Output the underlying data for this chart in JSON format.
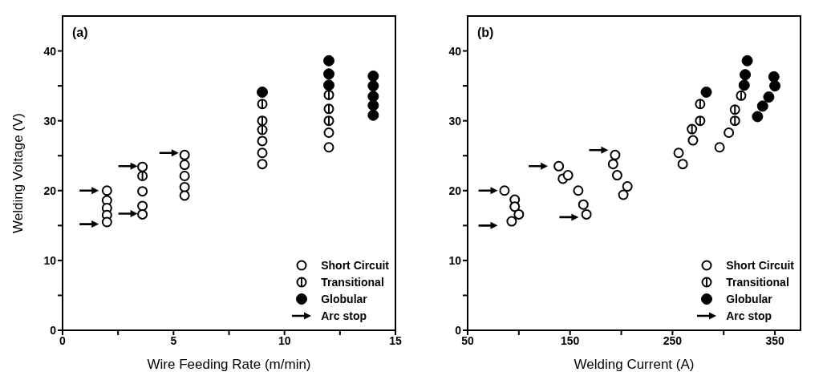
{
  "chart_data": [
    {
      "type": "scatter",
      "title": "(a)",
      "xlabel": "Wire Feeding Rate (m/min)",
      "ylabel": "Welding Voltage (V)",
      "xlim": [
        0,
        15
      ],
      "ylim": [
        0,
        45
      ],
      "xticks": [
        0,
        {
          "value": 2.5,
          "label": null
        },
        5,
        {
          "value": 7.5,
          "label": null
        },
        10,
        {
          "value": 12.5,
          "label": null
        },
        15
      ],
      "yticks": [
        0,
        {
          "value": 5,
          "label": null
        },
        10,
        {
          "value": 15,
          "label": null
        },
        20,
        {
          "value": 25,
          "label": null
        },
        30,
        {
          "value": 35,
          "label": null
        },
        40
      ],
      "legend": "bottom right",
      "grid": false,
      "series": [
        {
          "name": "Short Circuit",
          "color": "#000000",
          "x": [
            2,
            2,
            2,
            2,
            2,
            3.6,
            3.6,
            3.6,
            3.6,
            5.5,
            5.5,
            5.5,
            5.5,
            5.5,
            9,
            9,
            9,
            12,
            12
          ],
          "values": [
            20,
            18.6,
            17.5,
            16.5,
            15.5,
            23.4,
            19.9,
            17.8,
            16.6,
            25.1,
            23.7,
            22.1,
            20.5,
            19.3,
            27.1,
            25.4,
            23.8,
            28.3,
            26.2
          ]
        },
        {
          "name": "Transitional",
          "color": "#000000",
          "x": [
            3.6,
            9,
            9,
            9,
            12,
            12,
            12
          ],
          "values": [
            22.1,
            32.4,
            30,
            28.7,
            33.7,
            31.7,
            30
          ]
        },
        {
          "name": "Globular",
          "color": "#000000",
          "x": [
            9,
            12,
            12,
            12,
            14,
            14,
            14,
            14,
            14
          ],
          "values": [
            34.1,
            38.6,
            36.7,
            35.1,
            36.4,
            35,
            33.5,
            32.2,
            30.8
          ]
        },
        {
          "name": "Arc stop",
          "color": "#000000",
          "x": [
            1.2,
            1.2,
            2.95,
            2.95,
            4.8
          ],
          "values": [
            20,
            15.2,
            23.5,
            16.7,
            25.4
          ]
        }
      ]
    },
    {
      "type": "scatter",
      "title": "(b)",
      "xlabel": "Welding Current (A)",
      "xlim": [
        50,
        375
      ],
      "ylim": [
        0,
        45
      ],
      "xticks": [
        50,
        {
          "value": 100,
          "label": null
        },
        150,
        {
          "value": 200,
          "label": null
        },
        250,
        {
          "value": 300,
          "label": null
        },
        350
      ],
      "yticks": [
        0,
        {
          "value": 5,
          "label": null
        },
        10,
        {
          "value": 15,
          "label": null
        },
        20,
        {
          "value": 25,
          "label": null
        },
        30,
        {
          "value": 35,
          "label": null
        },
        40
      ],
      "legend": "bottom right",
      "grid": false,
      "series": [
        {
          "name": "Short Circuit",
          "color": "#000000",
          "x": [
            86,
            96,
            96,
            100,
            93,
            139,
            143,
            148,
            158,
            163,
            166,
            194,
            192,
            196,
            206,
            202,
            256,
            260,
            270,
            296,
            305
          ],
          "values": [
            20,
            18.7,
            17.7,
            16.6,
            15.6,
            23.5,
            21.7,
            22.2,
            20,
            18,
            16.6,
            25.1,
            23.8,
            22.2,
            20.6,
            19.4,
            25.4,
            23.8,
            27.2,
            26.2,
            28.3
          ]
        },
        {
          "name": "Transitional",
          "color": "#000000",
          "x": [
            269,
            277,
            277,
            311,
            311,
            317
          ],
          "values": [
            28.8,
            30,
            32.4,
            30,
            31.6,
            33.6
          ]
        },
        {
          "name": "Globular",
          "color": "#000000",
          "x": [
            283,
            323,
            321,
            320,
            333,
            338,
            344,
            349,
            350
          ],
          "values": [
            34.1,
            38.6,
            36.6,
            35.1,
            30.6,
            32.1,
            33.4,
            36.3,
            35
          ]
        },
        {
          "name": "Arc stop",
          "color": "#000000",
          "x": [
            70,
            70,
            119,
            149,
            178
          ],
          "values": [
            20,
            15,
            23.5,
            16.2,
            25.8
          ]
        }
      ]
    }
  ]
}
